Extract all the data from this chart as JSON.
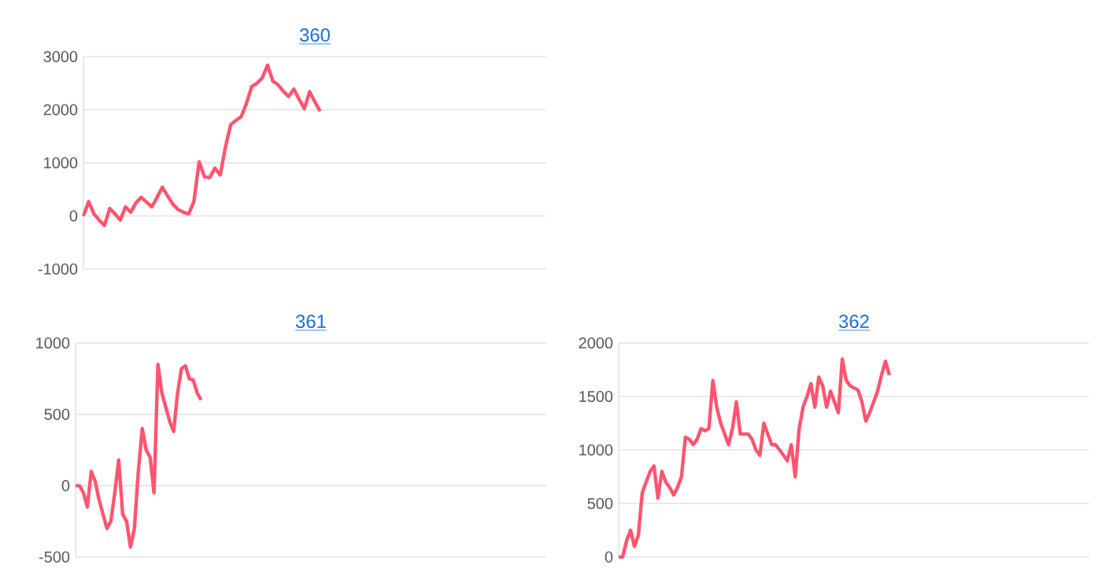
{
  "chart_data": [
    {
      "type": "line",
      "title": "360",
      "color": "#ff5470",
      "ylim": [
        -1000,
        3000
      ],
      "yticks": [
        -1000,
        0,
        1000,
        2000,
        3000
      ],
      "grid": "y",
      "tick_labels": "y",
      "categories": [
        null,
        null,
        null,
        null,
        null,
        null,
        null,
        null,
        null,
        null,
        null,
        null,
        null,
        null,
        null,
        null,
        null,
        null,
        null,
        null,
        null,
        null,
        null,
        null,
        null,
        null,
        null,
        null,
        null,
        null,
        null,
        null,
        null,
        null,
        null,
        null,
        null,
        null,
        null,
        null,
        null,
        null,
        null,
        null,
        null,
        null,
        null,
        null,
        null,
        null,
        null,
        null,
        null,
        null,
        null,
        null,
        null,
        null,
        null,
        null,
        null,
        null,
        null,
        null,
        null,
        null,
        null,
        null,
        null,
        null,
        null,
        null,
        null,
        null,
        null,
        null,
        null,
        null,
        null,
        null,
        null,
        null,
        null,
        null,
        null,
        null,
        null,
        null
      ],
      "values": [
        0,
        270,
        40,
        -80,
        -180,
        140,
        40,
        -80,
        170,
        70,
        250,
        350,
        260,
        170,
        350,
        540,
        380,
        220,
        120,
        70,
        40,
        270,
        1020,
        740,
        720,
        900,
        770,
        1300,
        1720,
        1800,
        1870,
        2120,
        2440,
        2500,
        2600,
        2840,
        2540,
        2470,
        2350,
        2250,
        2390,
        2200,
        2020,
        2340,
        2150,
        1970,
        null,
        null,
        null,
        null,
        null,
        null,
        null,
        null,
        null,
        null,
        null,
        null,
        null,
        null,
        null,
        null,
        null,
        null,
        null,
        null,
        null,
        null,
        null,
        null,
        null,
        null,
        null,
        null,
        null,
        null,
        null,
        null,
        null,
        null,
        null,
        null,
        null,
        null,
        null,
        null,
        null,
        null
      ]
    },
    {
      "type": "line",
      "title": "361",
      "color": "#ff5470",
      "ylim": [
        -500,
        1000
      ],
      "yticks": [
        -500,
        0,
        500,
        1000
      ],
      "grid": "y",
      "tick_labels": "y",
      "categories": [
        null,
        null,
        null,
        null,
        null,
        null,
        null,
        null,
        null,
        null,
        null,
        null,
        null,
        null,
        null,
        null,
        null,
        null,
        null,
        null,
        null,
        null,
        null,
        null,
        null,
        null,
        null,
        null,
        null,
        null,
        null,
        null,
        null,
        null,
        null,
        null,
        null,
        null,
        null,
        null,
        null,
        null,
        null,
        null,
        null,
        null,
        null,
        null,
        null,
        null,
        null,
        null,
        null,
        null,
        null,
        null,
        null,
        null,
        null,
        null,
        null,
        null,
        null,
        null,
        null,
        null,
        null,
        null,
        null,
        null,
        null,
        null,
        null,
        null,
        null,
        null,
        null,
        null,
        null,
        null,
        null,
        null,
        null,
        null,
        null,
        null,
        null,
        null,
        null,
        null,
        null,
        null,
        null,
        null,
        null,
        null,
        null,
        null,
        null,
        null,
        null,
        null,
        null,
        null,
        null,
        null,
        null,
        null,
        null,
        null,
        null,
        null,
        null,
        null,
        null,
        null,
        null,
        null,
        null,
        null
      ],
      "values": [
        0,
        0,
        -50,
        -150,
        100,
        30,
        -100,
        -200,
        -300,
        -250,
        -50,
        180,
        -200,
        -250,
        -430,
        -300,
        100,
        400,
        250,
        200,
        -50,
        850,
        650,
        550,
        450,
        380,
        650,
        820,
        840,
        750,
        740,
        650,
        600,
        null,
        null,
        null,
        null,
        null,
        null,
        null,
        null,
        null,
        null,
        null,
        null,
        null,
        null,
        null,
        null,
        null,
        null,
        null,
        null,
        null,
        null,
        null,
        null,
        null,
        null,
        null,
        null,
        null,
        null,
        null,
        null,
        null,
        null,
        null,
        null,
        null,
        null,
        null,
        null,
        null,
        null,
        null,
        null,
        null,
        null,
        null,
        null,
        null,
        null,
        null,
        null,
        null,
        null,
        null,
        null,
        null,
        null,
        null,
        null,
        null,
        null,
        null,
        null,
        null,
        null,
        null,
        null,
        null,
        null,
        null,
        null,
        null,
        null,
        null,
        null,
        null,
        null,
        null,
        null,
        null,
        null,
        null,
        null,
        null,
        null,
        null
      ]
    },
    {
      "type": "line",
      "title": "362",
      "color": "#ff5470",
      "ylim": [
        0,
        2000
      ],
      "yticks": [
        0,
        500,
        1000,
        1500,
        2000
      ],
      "grid": "y",
      "tick_labels": "y",
      "categories": [
        null,
        null,
        null,
        null,
        null,
        null,
        null,
        null,
        null,
        null,
        null,
        null,
        null,
        null,
        null,
        null,
        null,
        null,
        null,
        null,
        null,
        null,
        null,
        null,
        null,
        null,
        null,
        null,
        null,
        null,
        null,
        null,
        null,
        null,
        null,
        null,
        null,
        null,
        null,
        null,
        null,
        null,
        null,
        null,
        null,
        null,
        null,
        null,
        null,
        null,
        null,
        null,
        null,
        null,
        null,
        null,
        null,
        null,
        null,
        null,
        null,
        null,
        null,
        null,
        null,
        null,
        null,
        null,
        null,
        null,
        null,
        null,
        null,
        null,
        null,
        null,
        null,
        null,
        null,
        null,
        null,
        null,
        null,
        null,
        null,
        null,
        null,
        null,
        null,
        null,
        null,
        null,
        null,
        null,
        null,
        null,
        null,
        null,
        null,
        null,
        null,
        null,
        null,
        null,
        null,
        null,
        null,
        null,
        null,
        null,
        null,
        null,
        null,
        null,
        null,
        null,
        null,
        null,
        null,
        null
      ],
      "values": [
        0,
        0,
        150,
        250,
        100,
        200,
        600,
        700,
        800,
        850,
        550,
        800,
        700,
        650,
        580,
        650,
        750,
        1120,
        1100,
        1050,
        1100,
        1200,
        1180,
        1200,
        1650,
        1400,
        1250,
        1150,
        1050,
        1200,
        1450,
        1150,
        1150,
        1150,
        1100,
        1000,
        950,
        1250,
        1150,
        1050,
        1050,
        1000,
        950,
        900,
        1050,
        750,
        1200,
        1400,
        1500,
        1620,
        1400,
        1680,
        1600,
        1400,
        1550,
        1450,
        1350,
        1850,
        1650,
        1600,
        1580,
        1560,
        1450,
        1270,
        1350,
        1450,
        1550,
        1700,
        1830,
        1700,
        null,
        null,
        null,
        null,
        null,
        null,
        null,
        null,
        null,
        null,
        null,
        null,
        null,
        null,
        null,
        null,
        null,
        null,
        null,
        null,
        null,
        null,
        null,
        null,
        null,
        null,
        null,
        null,
        null,
        null,
        null,
        null,
        null,
        null,
        null,
        null,
        null,
        null,
        null,
        null,
        null,
        null,
        null,
        null,
        null,
        null,
        null,
        null,
        null,
        null
      ]
    }
  ]
}
